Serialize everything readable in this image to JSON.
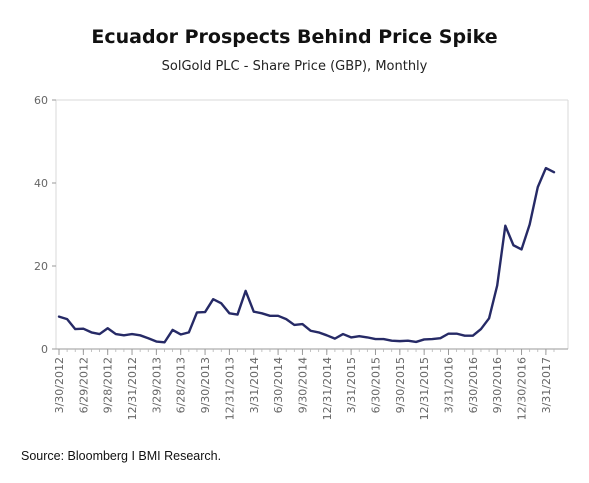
{
  "header": {
    "title": "Ecuador Prospects Behind Price Spike",
    "subtitle": "SolGold PLC - Share Price (GBP), Monthly"
  },
  "footer": {
    "source": "Source: Bloomberg I BMI Research."
  },
  "chart_data": {
    "type": "line",
    "title": "Ecuador Prospects Behind Price Spike",
    "subtitle": "SolGold PLC - Share Price (GBP), Monthly",
    "xlabel": "",
    "ylabel": "",
    "ylim": [
      0,
      60
    ],
    "yticks": [
      0,
      20,
      40,
      60
    ],
    "grid": false,
    "legend": "none",
    "line_color": "#262a66",
    "xtick_labels": [
      "3/30/2012",
      "6/29/2012",
      "9/28/2012",
      "12/31/2012",
      "3/29/2013",
      "6/28/2013",
      "9/30/2013",
      "12/31/2013",
      "3/31/2014",
      "6/30/2014",
      "9/30/2014",
      "12/31/2014",
      "3/31/2015",
      "6/30/2015",
      "9/30/2015",
      "12/31/2015",
      "3/31/2016",
      "6/30/2016",
      "9/30/2016",
      "12/30/2016",
      "3/31/2017"
    ],
    "series": [
      {
        "values": [
          7.8,
          7.2,
          4.8,
          4.9,
          4.0,
          3.6,
          5.0,
          3.6,
          3.3,
          3.6,
          3.3,
          2.6,
          1.8,
          1.6,
          4.6,
          3.5,
          4.0,
          8.8,
          8.9,
          12.0,
          11.0,
          8.6,
          8.3,
          14.0,
          9.0,
          8.6,
          8.0,
          8.0,
          7.2,
          5.8,
          6.0,
          4.4,
          4.0,
          3.3,
          2.5,
          3.6,
          2.8,
          3.1,
          2.8,
          2.4,
          2.4,
          2.0,
          1.9,
          2.0,
          1.7,
          2.3,
          2.4,
          2.6,
          3.7,
          3.7,
          3.2,
          3.2,
          4.8,
          7.4,
          15.3,
          29.7,
          25.0,
          24.0,
          30.0,
          39.0,
          43.6,
          42.6
        ]
      }
    ]
  }
}
